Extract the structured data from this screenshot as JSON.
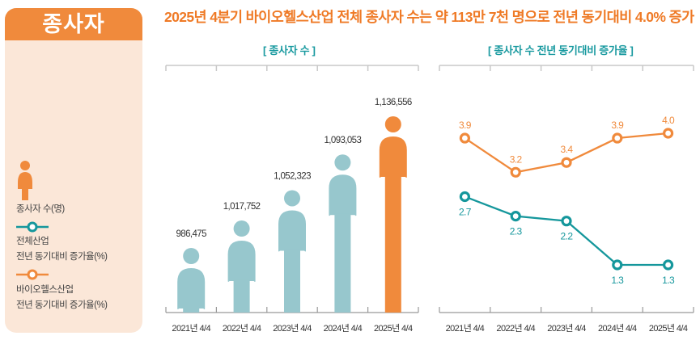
{
  "panel": {
    "title": "종사자",
    "headline": "2025년 4분기 바이오헬스산업 전체 종사자 수는 약 113만 7천 명으로 전년 동기대비 4.0% 증가"
  },
  "legend": {
    "workers": "종사자 수(명)",
    "all_industry_line1": "전체산업",
    "all_industry_line2": "전년 동기대비 증가율(%)",
    "bio_line1": "바이오헬스산업",
    "bio_line2": "전년 동기대비 증가율(%)"
  },
  "colors": {
    "orange": "#f08a3c",
    "teal": "#15979c",
    "figure_blue": "#97c7cd",
    "panel_bg": "#fbe7d8"
  },
  "chart_data": [
    {
      "type": "bar",
      "title": "[ 종사자 수 ]",
      "categories": [
        "2021년 4/4",
        "2022년 4/4",
        "2023년 4/4",
        "2024년 4/4",
        "2025년 4/4"
      ],
      "values": [
        986475,
        1017752,
        1052323,
        1093053,
        1136556
      ],
      "value_labels": [
        "986,475",
        "1,017,752",
        "1,052,323",
        "1,093,053",
        "1,136,556"
      ],
      "highlight_index": 4,
      "xlabel": "",
      "ylabel": "종사자 수(명)"
    },
    {
      "type": "line",
      "title": "[ 종사자 수 전년 동기대비 증가율 ]",
      "categories": [
        "2021년 4/4",
        "2022년 4/4",
        "2023년 4/4",
        "2024년 4/4",
        "2025년 4/4"
      ],
      "series": [
        {
          "name": "바이오헬스산업 전년 동기대비 증가율(%)",
          "values": [
            3.9,
            3.2,
            3.4,
            3.9,
            4.0
          ],
          "labels": [
            "3.9",
            "3.2",
            "3.4",
            "3.9",
            "4.0"
          ],
          "color": "#f08a3c",
          "label_position": "above"
        },
        {
          "name": "전체산업 전년 동기대비 증가율(%)",
          "values": [
            2.7,
            2.3,
            2.2,
            1.3,
            1.3
          ],
          "labels": [
            "2.7",
            "2.3",
            "2.2",
            "1.3",
            "1.3"
          ],
          "color": "#15979c",
          "label_position": "below"
        }
      ],
      "ylim": [
        0,
        5
      ],
      "xlabel": "",
      "ylabel": "%"
    }
  ]
}
